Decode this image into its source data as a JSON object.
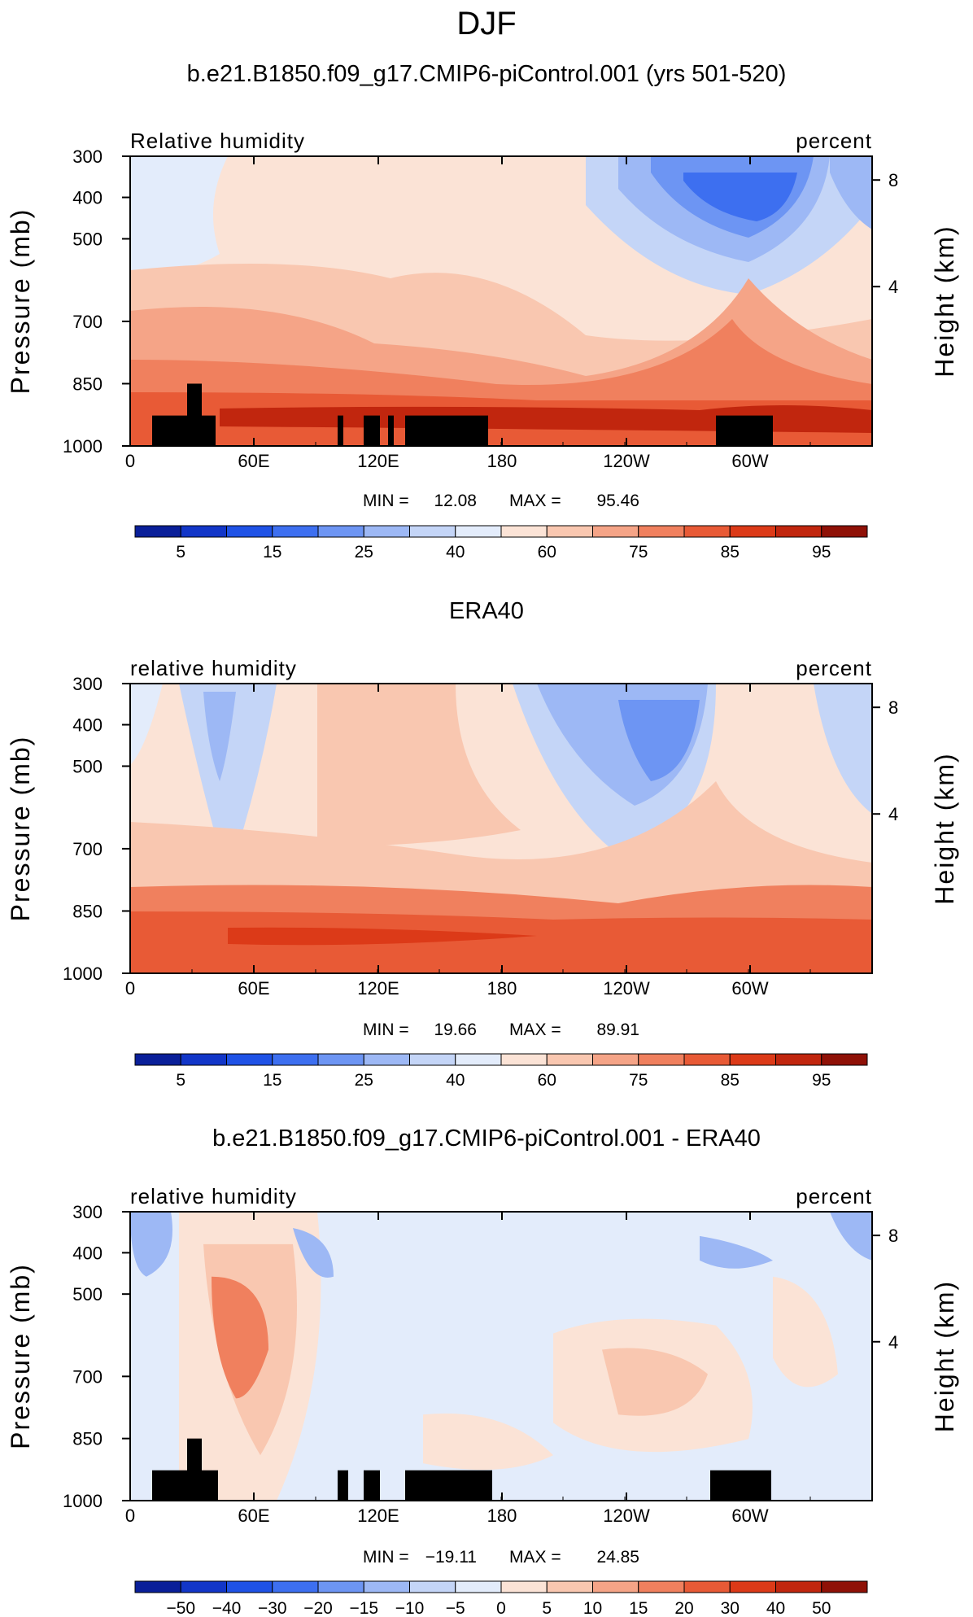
{
  "figure_title": "DJF",
  "chart_data": [
    {
      "type": "heatmap",
      "title": "b.e21.B1850.f09_g17.CMIP6-piControl.001 (yrs 501-520)",
      "left_label": "Relative humidity",
      "right_label": "percent",
      "ylabel": "Pressure (mb)",
      "y2label": "Height (km)",
      "xticks": [
        "0",
        "60E",
        "120E",
        "180",
        "120W",
        "60W"
      ],
      "yticks": [
        "300",
        "400",
        "500",
        "700",
        "850",
        "1000"
      ],
      "y2ticks": [
        "8",
        "4"
      ],
      "min_label": "MIN =",
      "min": "12.08",
      "max_label": "MAX =",
      "max": "95.46",
      "colorbar_labels": [
        "5",
        "15",
        "25",
        "40",
        "60",
        "75",
        "85",
        "95"
      ],
      "colorbar_colors": [
        "#0a1f99",
        "#1236c8",
        "#1f52e6",
        "#3d6ff0",
        "#6d95f3",
        "#9db8f5",
        "#c4d5f7",
        "#e3ecfb",
        "#fbe3d6",
        "#f9c7b0",
        "#f5a487",
        "#f0805e",
        "#e85a36",
        "#dc3a18",
        "#c1260e",
        "#8f1107"
      ],
      "land_mask": "black blocks near 1000 mb"
    },
    {
      "type": "heatmap",
      "title": "ERA40",
      "left_label": "relative humidity",
      "right_label": "percent",
      "ylabel": "Pressure (mb)",
      "y2label": "Height (km)",
      "xticks": [
        "0",
        "60E",
        "120E",
        "180",
        "120W",
        "60W"
      ],
      "yticks": [
        "300",
        "400",
        "500",
        "700",
        "850",
        "1000"
      ],
      "y2ticks": [
        "8",
        "4"
      ],
      "min_label": "MIN =",
      "min": "19.66",
      "max_label": "MAX =",
      "max": "89.91",
      "colorbar_labels": [
        "5",
        "15",
        "25",
        "40",
        "60",
        "75",
        "85",
        "95"
      ],
      "colorbar_colors": [
        "#0a1f99",
        "#1236c8",
        "#1f52e6",
        "#3d6ff0",
        "#6d95f3",
        "#9db8f5",
        "#c4d5f7",
        "#e3ecfb",
        "#fbe3d6",
        "#f9c7b0",
        "#f5a487",
        "#f0805e",
        "#e85a36",
        "#dc3a18",
        "#c1260e",
        "#8f1107"
      ]
    },
    {
      "type": "heatmap",
      "title": "b.e21.B1850.f09_g17.CMIP6-piControl.001 - ERA40",
      "left_label": "relative humidity",
      "right_label": "percent",
      "ylabel": "Pressure (mb)",
      "y2label": "Height (km)",
      "xticks": [
        "0",
        "60E",
        "120E",
        "180",
        "120W",
        "60W"
      ],
      "yticks": [
        "300",
        "400",
        "500",
        "700",
        "850",
        "1000"
      ],
      "y2ticks": [
        "8",
        "4"
      ],
      "min_label": "MIN =",
      "min": "−19.11",
      "max_label": "MAX =",
      "max": "24.85",
      "colorbar_labels": [
        "−50",
        "−40",
        "−30",
        "−20",
        "−15",
        "−10",
        "−5",
        "0",
        "5",
        "10",
        "15",
        "20",
        "30",
        "40",
        "50"
      ],
      "colorbar_colors": [
        "#0a1f99",
        "#1236c8",
        "#1f52e6",
        "#3d6ff0",
        "#6d95f3",
        "#9db8f5",
        "#c4d5f7",
        "#e3ecfb",
        "#fbe3d6",
        "#f9c7b0",
        "#f5a487",
        "#f0805e",
        "#e85a36",
        "#dc3a18",
        "#c1260e",
        "#8f1107"
      ],
      "land_mask": "black blocks near 1000 mb"
    }
  ]
}
